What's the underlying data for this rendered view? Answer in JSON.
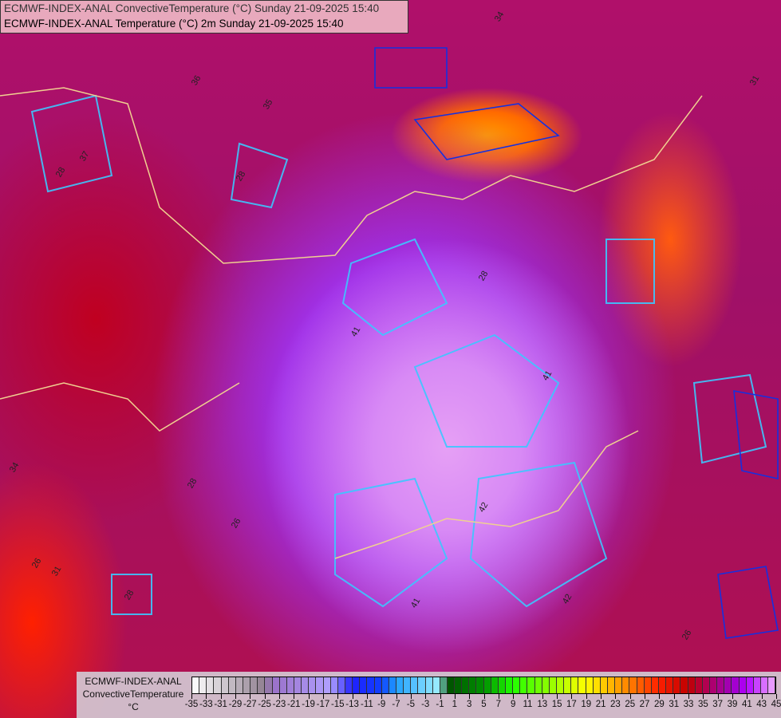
{
  "title": {
    "line1": "ECMWF-INDEX-ANAL ConvectiveTemperature (°C) Sunday 21-09-2025 15:40",
    "line2": "ECMWF-INDEX-ANAL Temperature (°C) 2m Sunday 21-09-2025 15:40"
  },
  "legend": {
    "model": "ECMWF-INDEX-ANAL",
    "parameter": "ConvectiveTemperature",
    "unit": "°C",
    "tick_labels": [
      "-35",
      "-33",
      "-31",
      "-29",
      "-27",
      "-25",
      "-23",
      "-21",
      "-19",
      "-17",
      "-15",
      "-13",
      "-11",
      "-9",
      "-7",
      "-5",
      "-3",
      "-1",
      "1",
      "3",
      "5",
      "7",
      "9",
      "11",
      "13",
      "15",
      "17",
      "19",
      "21",
      "23",
      "25",
      "27",
      "29",
      "31",
      "33",
      "35",
      "37",
      "39",
      "41",
      "43",
      "45"
    ],
    "range": [
      -35,
      45
    ],
    "color_stops": [
      {
        "value": -35,
        "color": "#ffffff"
      },
      {
        "value": -25,
        "color": "#908090"
      },
      {
        "value": -24,
        "color": "#9a70c8"
      },
      {
        "value": -16,
        "color": "#b0a0ff"
      },
      {
        "value": -13,
        "color": "#2020ff"
      },
      {
        "value": -9,
        "color": "#1040ff"
      },
      {
        "value": -7,
        "color": "#20a0ff"
      },
      {
        "value": -1,
        "color": "#a0f0ff"
      },
      {
        "value": 0,
        "color": "#005000"
      },
      {
        "value": 5,
        "color": "#009000"
      },
      {
        "value": 9,
        "color": "#20ff00"
      },
      {
        "value": 19,
        "color": "#ffff00"
      },
      {
        "value": 25,
        "color": "#ff8000"
      },
      {
        "value": 29,
        "color": "#ff2000"
      },
      {
        "value": 33,
        "color": "#c00000"
      },
      {
        "value": 36,
        "color": "#b00060"
      },
      {
        "value": 39,
        "color": "#a000c0"
      },
      {
        "value": 41,
        "color": "#b000ff"
      },
      {
        "value": 45,
        "color": "#f0b0ff"
      }
    ]
  },
  "contour_labels": [
    "28",
    "28",
    "28",
    "26",
    "26",
    "28",
    "41",
    "41",
    "42",
    "42",
    "34",
    "34",
    "35",
    "31",
    "31",
    "36",
    "37",
    "41",
    "26",
    "28"
  ]
}
